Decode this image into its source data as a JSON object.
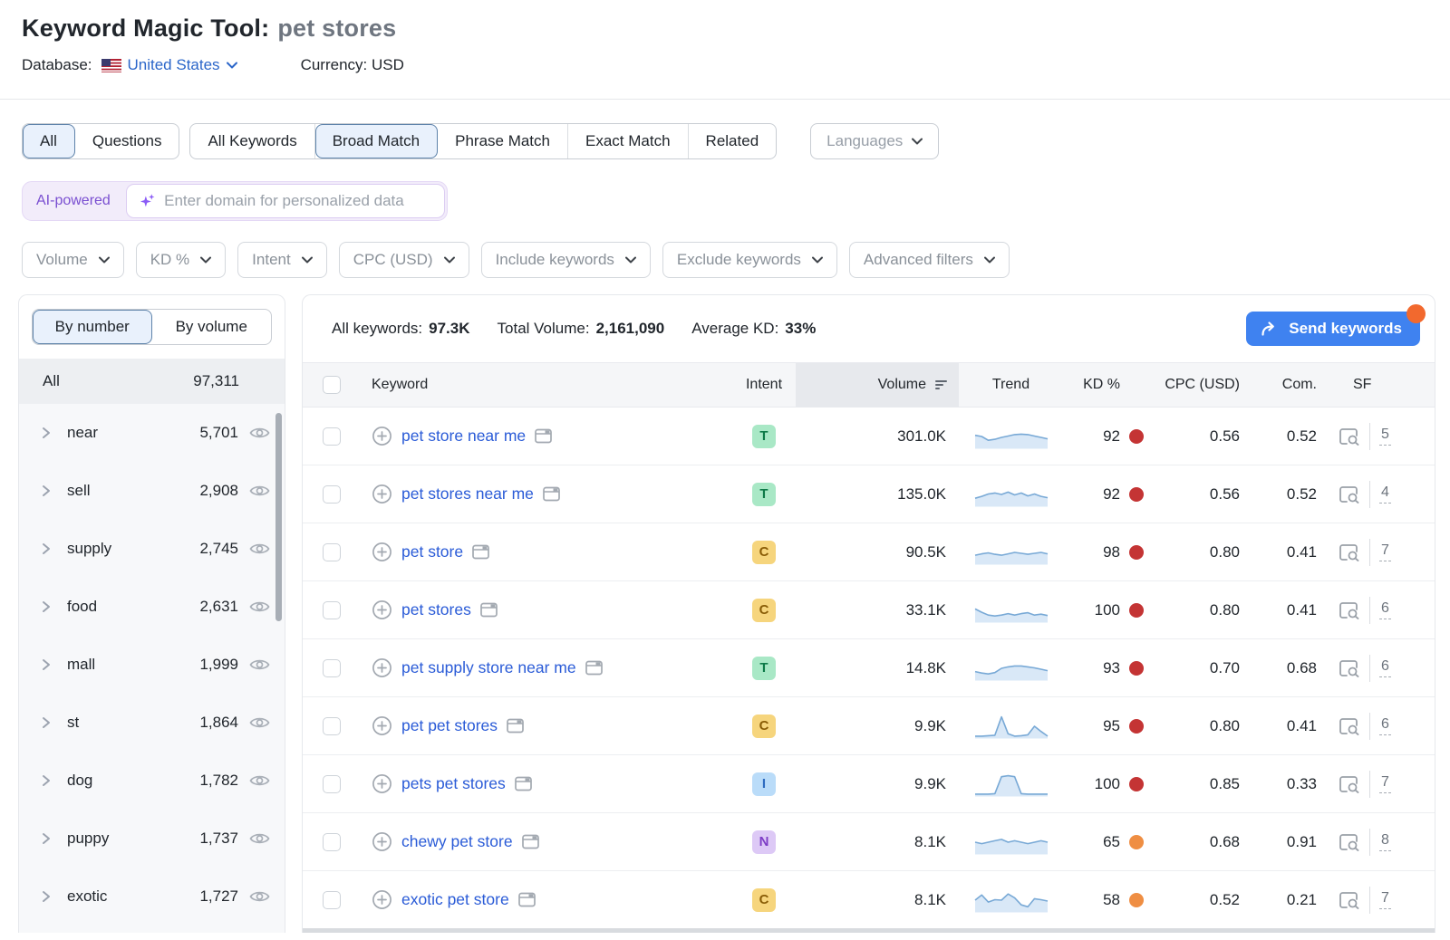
{
  "header": {
    "title": "Keyword Magic Tool:",
    "query": "pet stores",
    "database_label": "Database:",
    "database_value": "United States",
    "currency_label": "Currency:",
    "currency_value": "USD"
  },
  "match_tabs": {
    "group1": [
      {
        "label": "All",
        "selected": true
      },
      {
        "label": "Questions",
        "selected": false
      }
    ],
    "group2": [
      {
        "label": "All Keywords",
        "selected": false
      },
      {
        "label": "Broad Match",
        "selected": true
      },
      {
        "label": "Phrase Match",
        "selected": false
      },
      {
        "label": "Exact Match",
        "selected": false
      },
      {
        "label": "Related",
        "selected": false
      }
    ],
    "languages_label": "Languages"
  },
  "ai_bar": {
    "badge": "AI-powered",
    "placeholder": "Enter domain for personalized data"
  },
  "filters": [
    "Volume",
    "KD %",
    "Intent",
    "CPC (USD)",
    "Include keywords",
    "Exclude keywords",
    "Advanced filters"
  ],
  "sidebar": {
    "tabs": [
      {
        "label": "By number",
        "selected": true
      },
      {
        "label": "By volume",
        "selected": false
      }
    ],
    "all_row": {
      "label": "All",
      "count": "97,311"
    },
    "groups": [
      {
        "label": "near",
        "count": "5,701"
      },
      {
        "label": "sell",
        "count": "2,908"
      },
      {
        "label": "supply",
        "count": "2,745"
      },
      {
        "label": "food",
        "count": "2,631"
      },
      {
        "label": "mall",
        "count": "1,999"
      },
      {
        "label": "st",
        "count": "1,864"
      },
      {
        "label": "dog",
        "count": "1,782"
      },
      {
        "label": "puppy",
        "count": "1,737"
      },
      {
        "label": "exotic",
        "count": "1,727"
      }
    ]
  },
  "summary": {
    "all_keywords_label": "All keywords:",
    "all_keywords_value": "97.3K",
    "total_volume_label": "Total Volume:",
    "total_volume_value": "2,161,090",
    "average_kd_label": "Average KD:",
    "average_kd_value": "33%",
    "send_button_label": "Send keywords"
  },
  "table": {
    "columns": [
      "Keyword",
      "Intent",
      "Volume",
      "Trend",
      "KD %",
      "CPC (USD)",
      "Com.",
      "SF"
    ],
    "sorted_column": "Volume",
    "intent_styles": {
      "T": {
        "bg": "#a9e8c6",
        "fg": "#0e7a48"
      },
      "C": {
        "bg": "#f6d57d",
        "fg": "#8a5d07"
      },
      "I": {
        "bg": "#badcf9",
        "fg": "#2f6cc0"
      },
      "N": {
        "bg": "#ddc9f6",
        "fg": "#7e3ec6"
      }
    },
    "kd_dot_colors": {
      "red": "#c43434",
      "orange": "#ef8e43"
    },
    "rows": [
      {
        "keyword": "pet store near me",
        "intent": "T",
        "volume": "301.0K",
        "trend": [
          0.55,
          0.5,
          0.34,
          0.38,
          0.46,
          0.52,
          0.58,
          0.6,
          0.58,
          0.52,
          0.46,
          0.4
        ],
        "kd": "92",
        "kd_level": "red",
        "cpc": "0.56",
        "com": "0.52",
        "sf": "5"
      },
      {
        "keyword": "pet stores near me",
        "intent": "T",
        "volume": "135.0K",
        "trend": [
          0.34,
          0.42,
          0.52,
          0.56,
          0.5,
          0.6,
          0.48,
          0.56,
          0.44,
          0.52,
          0.42,
          0.36
        ],
        "kd": "92",
        "kd_level": "red",
        "cpc": "0.56",
        "com": "0.52",
        "sf": "4"
      },
      {
        "keyword": "pet store",
        "intent": "C",
        "volume": "90.5K",
        "trend": [
          0.38,
          0.44,
          0.48,
          0.42,
          0.38,
          0.44,
          0.5,
          0.46,
          0.42,
          0.46,
          0.5,
          0.44
        ],
        "kd": "98",
        "kd_level": "red",
        "cpc": "0.80",
        "com": "0.41",
        "sf": "7"
      },
      {
        "keyword": "pet stores",
        "intent": "C",
        "volume": "33.1K",
        "trend": [
          0.56,
          0.42,
          0.3,
          0.26,
          0.3,
          0.36,
          0.3,
          0.36,
          0.4,
          0.3,
          0.34,
          0.28
        ],
        "kd": "100",
        "kd_level": "red",
        "cpc": "0.80",
        "com": "0.41",
        "sf": "6"
      },
      {
        "keyword": "pet supply store near me",
        "intent": "T",
        "volume": "14.8K",
        "trend": [
          0.36,
          0.3,
          0.26,
          0.32,
          0.5,
          0.56,
          0.6,
          0.6,
          0.56,
          0.52,
          0.46,
          0.4
        ],
        "kd": "93",
        "kd_level": "red",
        "cpc": "0.70",
        "com": "0.68",
        "sf": "6"
      },
      {
        "keyword": "pet pet stores",
        "intent": "C",
        "volume": "9.9K",
        "trend": [
          0.08,
          0.08,
          0.1,
          0.12,
          0.9,
          0.18,
          0.08,
          0.1,
          0.14,
          0.5,
          0.28,
          0.08
        ],
        "kd": "95",
        "kd_level": "red",
        "cpc": "0.80",
        "com": "0.41",
        "sf": "6"
      },
      {
        "keyword": "pets pet stores",
        "intent": "I",
        "volume": "9.9K",
        "trend": [
          0.08,
          0.08,
          0.08,
          0.1,
          0.82,
          0.86,
          0.82,
          0.1,
          0.08,
          0.08,
          0.08,
          0.08
        ],
        "kd": "100",
        "kd_level": "red",
        "cpc": "0.85",
        "com": "0.33",
        "sf": "7"
      },
      {
        "keyword": "chewy pet store",
        "intent": "N",
        "volume": "8.1K",
        "trend": [
          0.5,
          0.44,
          0.5,
          0.56,
          0.62,
          0.5,
          0.56,
          0.5,
          0.44,
          0.5,
          0.56,
          0.5
        ],
        "kd": "65",
        "kd_level": "orange",
        "cpc": "0.68",
        "com": "0.91",
        "sf": "8"
      },
      {
        "keyword": "exotic pet store",
        "intent": "C",
        "volume": "8.1K",
        "trend": [
          0.5,
          0.72,
          0.42,
          0.52,
          0.5,
          0.76,
          0.6,
          0.3,
          0.22,
          0.56,
          0.52,
          0.46
        ],
        "kd": "58",
        "kd_level": "orange",
        "cpc": "0.52",
        "com": "0.21",
        "sf": "7"
      }
    ]
  },
  "colors": {
    "accent_blue": "#3f82f0",
    "link_blue": "#2a5bd7",
    "selected_tab_bg": "#e9f1fc",
    "selected_tab_border": "#5e83aa",
    "ai_purple": "#7a4fd1",
    "notification_orange": "#f2692e",
    "trend_line": "#78a9d6",
    "trend_fill": "#d9e8f7"
  }
}
